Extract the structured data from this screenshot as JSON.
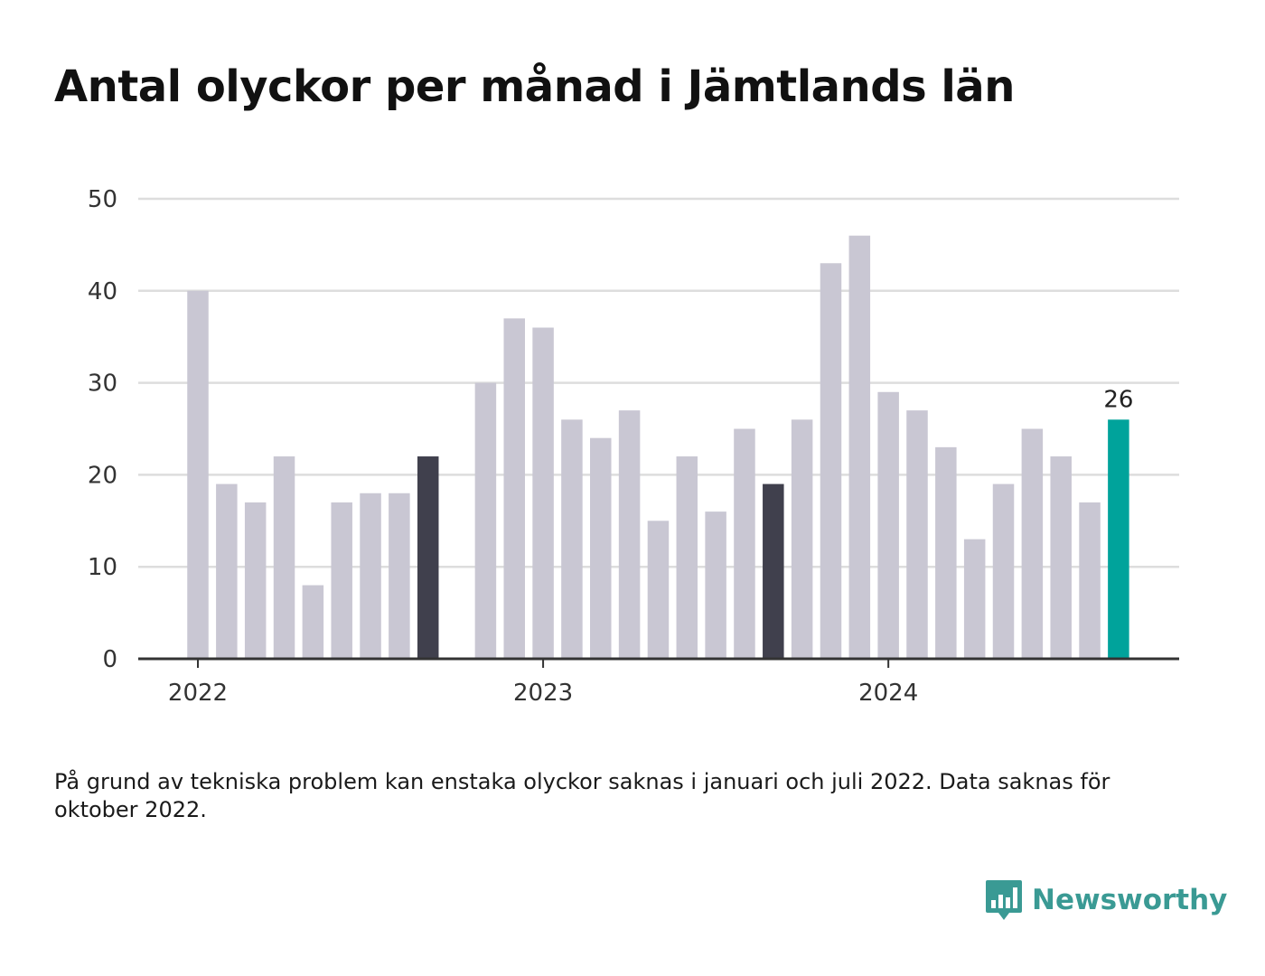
{
  "title": "Antal olyckor per månad i Jämtlands län",
  "note": "På grund av tekniska problem kan enstaka olyckor saknas i januari och juli 2022. Data saknas för oktober 2022.",
  "brand": {
    "name": "Newsworthy",
    "icon": "newsworthy-logo-icon"
  },
  "colors": {
    "default_bar": "#c9c7d3",
    "dark_bar": "#40404d",
    "highlight_bar": "#00a39b",
    "grid": "#dddddd",
    "axis": "#333333",
    "brand": "#3a9a94"
  },
  "chart_data": {
    "type": "bar",
    "title": "Antal olyckor per månad i Jämtlands län",
    "ylim": [
      0,
      50
    ],
    "yticks": [
      0,
      10,
      20,
      30,
      40,
      50
    ],
    "xticks": [
      "2022",
      "2023",
      "2024"
    ],
    "grid": true,
    "data_label": "26",
    "months": [
      "2022-01",
      "2022-02",
      "2022-03",
      "2022-04",
      "2022-05",
      "2022-06",
      "2022-07",
      "2022-08",
      "2022-09",
      "2022-10",
      "2022-11",
      "2022-12",
      "2023-01",
      "2023-02",
      "2023-03",
      "2023-04",
      "2023-05",
      "2023-06",
      "2023-07",
      "2023-08",
      "2023-09",
      "2023-10",
      "2023-11",
      "2023-12",
      "2024-01",
      "2024-02",
      "2024-03",
      "2024-04",
      "2024-05",
      "2024-06",
      "2024-07",
      "2024-08",
      "2024-09"
    ],
    "values": [
      40,
      19,
      17,
      22,
      8,
      17,
      18,
      18,
      22,
      null,
      30,
      37,
      36,
      26,
      24,
      27,
      15,
      22,
      16,
      25,
      19,
      26,
      43,
      46,
      29,
      27,
      23,
      13,
      19,
      25,
      22,
      17,
      26
    ],
    "dark_months": [
      "2022-09",
      "2023-09"
    ],
    "highlight_month": "2024-09"
  }
}
